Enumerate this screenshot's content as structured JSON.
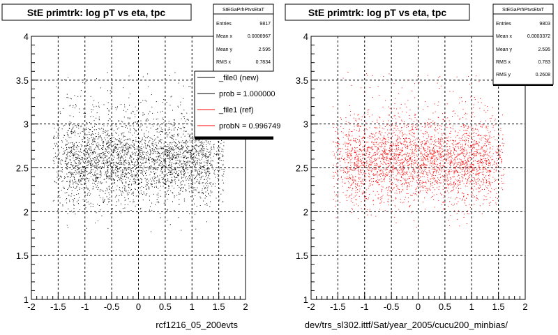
{
  "left_panel": {
    "title": "StE primtrk: log pT vs eta, tpc",
    "caption": "rcf1216_05_200evts",
    "stats": {
      "name": "StEGaPrhPtvsEtaT",
      "rows": [
        {
          "label": "Entries",
          "value": "9817"
        },
        {
          "label": "Mean x",
          "value": "0.0006967"
        },
        {
          "label": "Mean y",
          "value": "2.595"
        },
        {
          "label": "RMS x",
          "value": "0.7834"
        }
      ]
    },
    "legend": [
      {
        "label": "_file0 (new)",
        "color": "#000000"
      },
      {
        "label": "prob = 1.000000",
        "color": "#000000"
      },
      {
        "label": "_file1 (ref)",
        "color": "#ff0000"
      },
      {
        "label": "probN = 0.996749",
        "color": "#ff0000"
      }
    ]
  },
  "right_panel": {
    "title": "StE primtrk: log pT vs eta, tpc",
    "caption": "dev/trs_sl302.ittf/Sat/year_2005/cucu200_minbias/",
    "stats": {
      "name": "StEGaPrhPtvsEtaT",
      "rows": [
        {
          "label": "Entries",
          "value": "9803"
        },
        {
          "label": "Mean x",
          "value": "0.0003372"
        },
        {
          "label": "Mean y",
          "value": "2.595"
        },
        {
          "label": "RMS x",
          "value": "0.783"
        },
        {
          "label": "RMS y",
          "value": "0.2608"
        }
      ]
    }
  },
  "chart_data": [
    {
      "type": "scatter",
      "title": "StE primtrk: log pT vs eta, tpc",
      "xlabel": "rcf1216_05_200evts",
      "ylabel": "",
      "xlim": [
        -2,
        2
      ],
      "ylim": [
        1,
        4
      ],
      "x_ticks": [
        "-2",
        "-1.5",
        "-1",
        "-0.5",
        "0",
        "0.5",
        "1",
        "1.5",
        "2"
      ],
      "y_ticks": [
        "1",
        "1.5",
        "2",
        "2.5",
        "3",
        "3.5",
        "4"
      ],
      "grid": true,
      "color": "#000000",
      "distribution": {
        "x_min": -1.6,
        "x_max": 1.6,
        "y_mean": 2.595,
        "y_rms": 0.26,
        "entries": 9817
      },
      "series": [
        {
          "name": "_file0 (new)",
          "color": "#000000"
        }
      ]
    },
    {
      "type": "scatter",
      "title": "StE primtrk: log pT vs eta, tpc",
      "xlabel": "dev/trs_sl302.ittf/Sat/year_2005/cucu200_minbias/",
      "ylabel": "",
      "xlim": [
        -2,
        2
      ],
      "ylim": [
        1,
        4
      ],
      "x_ticks": [
        "-2",
        "-1.5",
        "-1",
        "-0.5",
        "0",
        "0.5",
        "1",
        "1.5",
        "2"
      ],
      "y_ticks": [
        "1",
        "1.5",
        "2",
        "2.5",
        "3",
        "3.5",
        "4"
      ],
      "grid": true,
      "color": "#ff0000",
      "distribution": {
        "x_min": -1.6,
        "x_max": 1.6,
        "y_mean": 2.595,
        "y_rms": 0.2608,
        "entries": 9803
      },
      "series": [
        {
          "name": "_file1 (ref)",
          "color": "#ff0000"
        }
      ]
    }
  ]
}
